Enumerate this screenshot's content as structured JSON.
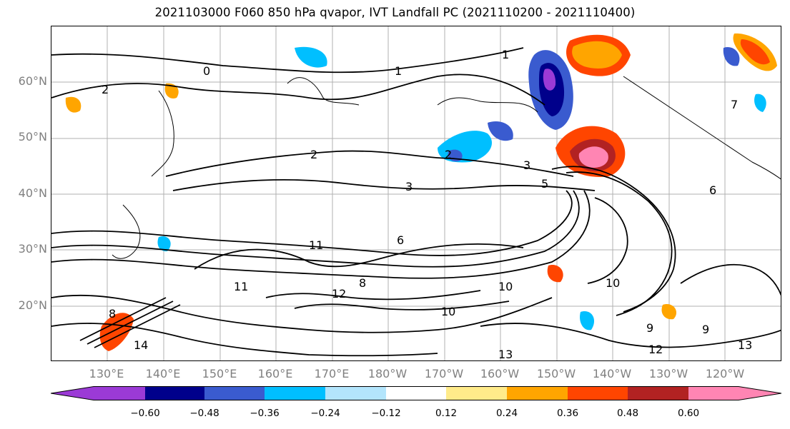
{
  "title": "2021103000 F060 850 hPa qvapor, IVT Landfall PC (2021110200 - 2021110400)",
  "lat_labels": [
    "60°N",
    "50°N",
    "40°N",
    "30°N",
    "20°N"
  ],
  "lon_labels": [
    "130°E",
    "140°E",
    "150°E",
    "160°E",
    "170°E",
    "180°W",
    "170°W",
    "160°W",
    "150°W",
    "140°W",
    "130°W",
    "120°W"
  ],
  "colorbar": {
    "tick_labels": [
      "−0.60",
      "−0.48",
      "−0.36",
      "−0.24",
      "−0.12",
      "0.12",
      "0.24",
      "0.36",
      "0.48",
      "0.60"
    ],
    "colors": [
      "#9b3ad6",
      "#00008b",
      "#3a5bcf",
      "#00bfff",
      "#b3e5fc",
      "#ffffff",
      "#ffeb8a",
      "#ffa500",
      "#ff4500",
      "#b22222",
      "#ff85b3"
    ]
  },
  "contour_labels": [
    "0",
    "1",
    "2",
    "2",
    "2",
    "3",
    "3",
    "5",
    "1",
    "6",
    "11",
    "11",
    "12",
    "8",
    "10",
    "10",
    "10",
    "9",
    "9",
    "12",
    "13",
    "14",
    "13",
    "8",
    "6",
    "7"
  ],
  "colors": {
    "neg_strong": "#9b3ad6",
    "neg_dark": "#00008b",
    "neg_mid": "#3a5bcf",
    "neg_light": "#00bfff",
    "pos_light": "#ffeb8a",
    "pos_mid": "#ffa500",
    "pos_strong": "#ff4500",
    "pos_dark": "#b22222",
    "pos_max": "#ff85b3"
  }
}
